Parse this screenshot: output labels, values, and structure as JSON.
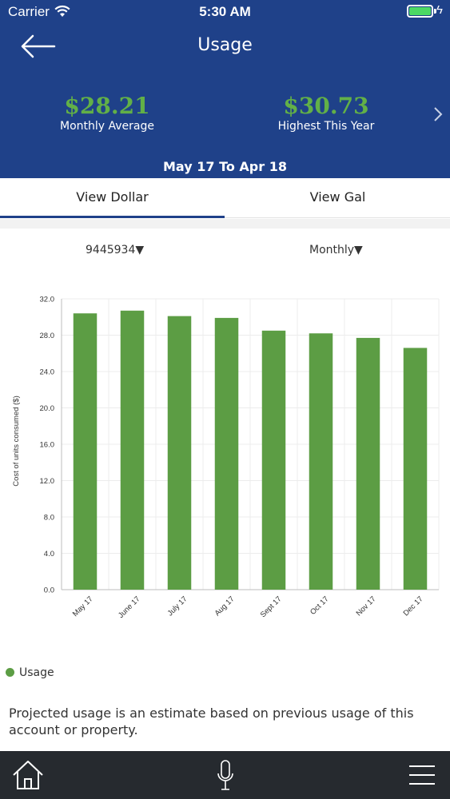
{
  "status_bar": {
    "carrier": "Carrier",
    "time": "5:30 AM"
  },
  "header": {
    "title": "Usage",
    "monthly_average_value": "$28.21",
    "monthly_average_label": "Monthly Average",
    "highest_value": "$30.73",
    "highest_label": "Highest This Year",
    "date_range": "May 17 To Apr 18"
  },
  "tabs": [
    {
      "label": "View Dollar",
      "active": true
    },
    {
      "label": "View Gal",
      "active": false
    }
  ],
  "selectors": {
    "account": "9445934▼",
    "period": "Monthly▼"
  },
  "chart_data": {
    "type": "bar",
    "categories": [
      "May 17",
      "June 17",
      "July 17",
      "Aug 17",
      "Sept 17",
      "Oct 17",
      "Nov 17",
      "Dec 17"
    ],
    "series": [
      {
        "name": "Usage",
        "values": [
          30.4,
          30.7,
          30.1,
          29.9,
          28.5,
          28.2,
          27.7,
          26.6
        ],
        "color": "#5c9d44"
      }
    ],
    "ylabel": "Cost of units consumed ($)",
    "ylim": [
      0,
      32
    ],
    "yticks": [
      "0.0",
      "4.0",
      "8.0",
      "12.0",
      "16.0",
      "20.0",
      "24.0",
      "28.0",
      "32.0"
    ],
    "ytick_values": [
      0,
      4,
      8,
      12,
      16,
      20,
      24,
      28,
      32
    ],
    "grid": true,
    "legend": "bottom-left"
  },
  "legend": {
    "label": "Usage"
  },
  "note": "Projected usage is an estimate based on previous usage of this account or property.",
  "colors": {
    "header_bg": "#1f4189",
    "accent_green": "#62b047",
    "bar_green": "#5c9d44",
    "bottom_bar": "#262a2f"
  },
  "icons": {
    "back": "back-arrow-icon",
    "next": "chevron-right-icon",
    "home": "home-icon",
    "mic": "microphone-icon",
    "menu": "hamburger-menu-icon"
  }
}
